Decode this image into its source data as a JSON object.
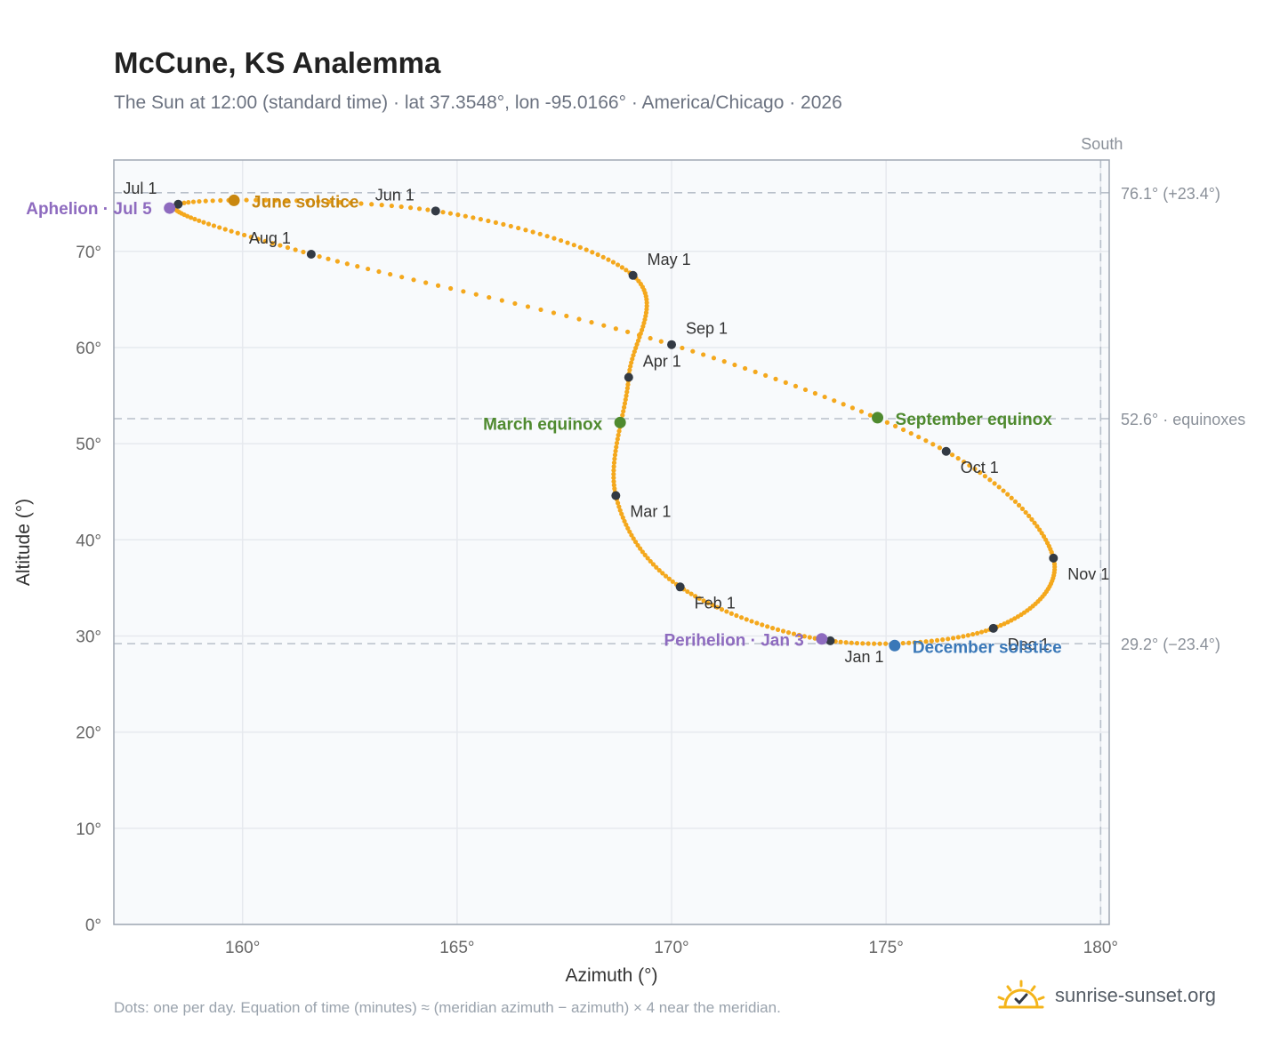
{
  "header": {
    "title": "McCune, KS Analemma",
    "subtitle": "The Sun at 12:00 (standard time) · lat 37.3548°, lon -95.0166° · America/Chicago · 2026"
  },
  "footer": {
    "note": "Dots: one per day. Equation of time (minutes) ≈ (meridian azimuth − azimuth) × 4 near the meridian.",
    "brand": "sunrise-sunset.org"
  },
  "chart_data": {
    "type": "scatter",
    "xlabel": "Azimuth (°)",
    "ylabel": "Altitude (°)",
    "xlim": [
      157,
      180.2
    ],
    "ylim": [
      0,
      79.5
    ],
    "xticks": [
      160,
      165,
      170,
      175,
      180
    ],
    "xtick_labels": [
      "160°",
      "165°",
      "170°",
      "175°",
      "180°"
    ],
    "yticks": [
      0,
      10,
      20,
      30,
      40,
      50,
      60,
      70
    ],
    "ytick_labels": [
      "0°",
      "10°",
      "20°",
      "30°",
      "40°",
      "50°",
      "60°",
      "70°"
    ],
    "grid": true,
    "south": {
      "x": 180,
      "label": "South"
    },
    "reference_lines": [
      {
        "y": 76.1,
        "label": "76.1° (+23.4°)"
      },
      {
        "y": 52.6,
        "label": "52.6° · equinoxes"
      },
      {
        "y": 29.2,
        "label": "29.2° (−23.4°)"
      }
    ],
    "month_points": [
      {
        "label": "Jan 1",
        "doy": 1,
        "x": 173.7,
        "y": 29.5
      },
      {
        "label": "Feb 1",
        "doy": 32,
        "x": 170.2,
        "y": 35.1
      },
      {
        "label": "Mar 1",
        "doy": 60,
        "x": 168.7,
        "y": 44.6
      },
      {
        "label": "Apr 1",
        "doy": 91,
        "x": 169.0,
        "y": 56.9
      },
      {
        "label": "May 1",
        "doy": 121,
        "x": 169.1,
        "y": 67.5
      },
      {
        "label": "Jun 1",
        "doy": 152,
        "x": 164.5,
        "y": 74.2
      },
      {
        "label": "Jul 1",
        "doy": 182,
        "x": 158.5,
        "y": 74.9
      },
      {
        "label": "Aug 1",
        "doy": 213,
        "x": 161.6,
        "y": 69.7
      },
      {
        "label": "Sep 1",
        "doy": 244,
        "x": 170.0,
        "y": 60.3
      },
      {
        "label": "Oct 1",
        "doy": 274,
        "x": 176.4,
        "y": 49.2
      },
      {
        "label": "Nov 1",
        "doy": 305,
        "x": 178.9,
        "y": 38.1
      },
      {
        "label": "Dec 1",
        "doy": 335,
        "x": 177.5,
        "y": 30.8
      }
    ],
    "events": [
      {
        "label": "Aphelion · Jul 5",
        "doy": 186,
        "x": 158.3,
        "y": 74.5,
        "color": "#8e6bbf"
      },
      {
        "label": "June solstice",
        "doy": 172,
        "x": 159.8,
        "y": 75.3,
        "color": "#c9870f"
      },
      {
        "label": "March equinox",
        "doy": 79,
        "x": 168.8,
        "y": 52.2,
        "color": "#4f8a2f"
      },
      {
        "label": "September equinox",
        "doy": 265,
        "x": 174.8,
        "y": 52.7,
        "color": "#4f8a2f"
      },
      {
        "label": "Perihelion · Jan 3",
        "doy": 3,
        "x": 173.5,
        "y": 29.7,
        "color": "#8e6bbf"
      },
      {
        "label": "December solstice",
        "doy": 355,
        "x": 175.2,
        "y": 29.0,
        "color": "#3a78b8"
      }
    ],
    "colors": {
      "curve": "#f4a81d",
      "month_dot": "#333a44",
      "grid": "#e6e9ee",
      "plot_bg": "#f8fafc",
      "frame": "#a0a8b3"
    }
  }
}
